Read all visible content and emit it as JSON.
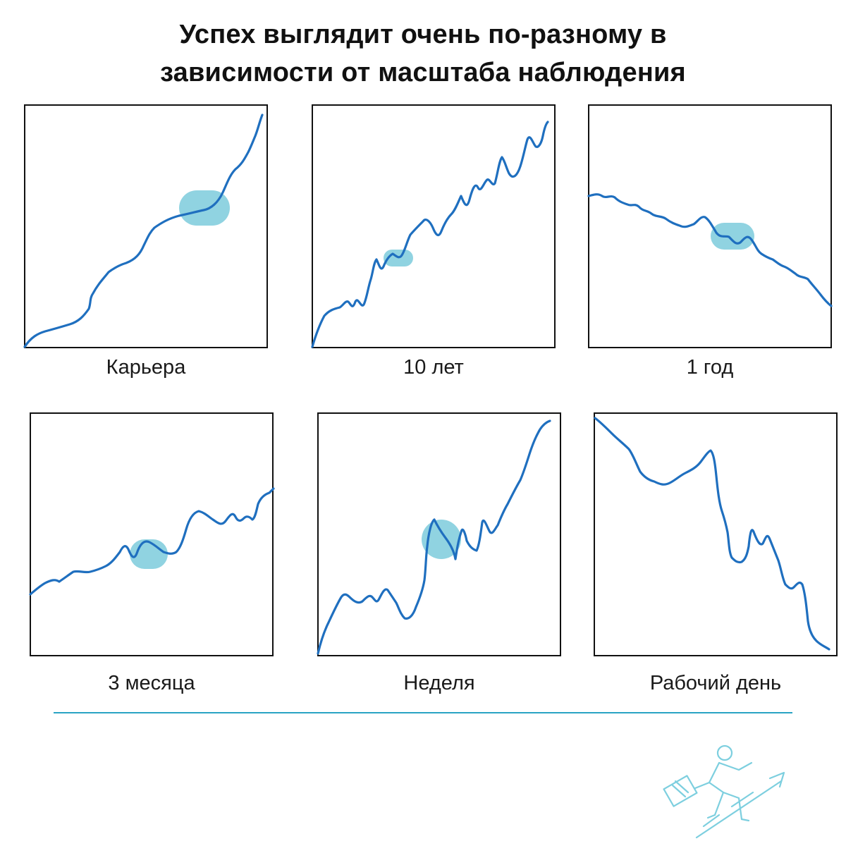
{
  "title": {
    "line1": "Успех выглядит очень по-разному в",
    "line2": "зависимости от масштаба наблюдения"
  },
  "colors": {
    "line": "#1f6fbf",
    "highlight": "#7ccbdc",
    "frame": "#111111",
    "divider": "#2aa3c4",
    "logo": "#7dcfdf"
  },
  "panels": [
    {
      "label": "Карьера",
      "trend": [
        0.0,
        0.04,
        0.05,
        0.06,
        0.07,
        0.08,
        0.1,
        0.12,
        0.15,
        0.18,
        0.2,
        0.23,
        0.25,
        0.27,
        0.29,
        0.3,
        0.33,
        0.36,
        0.39,
        0.42,
        0.45,
        0.48,
        0.51,
        0.53,
        0.55,
        0.56,
        0.57,
        0.58,
        0.585,
        0.59,
        0.6,
        0.62,
        0.65,
        0.7,
        0.74,
        0.78,
        0.81,
        0.84,
        0.87,
        0.9,
        0.93,
        0.96,
        1.0
      ],
      "highlight_at": 0.7
    },
    {
      "label": "10 лет",
      "trend": [
        0.0,
        0.12,
        0.15,
        0.17,
        0.18,
        0.2,
        0.19,
        0.22,
        0.21,
        0.2,
        0.25,
        0.22,
        0.26,
        0.3,
        0.35,
        0.38,
        0.34,
        0.4,
        0.39,
        0.43,
        0.4,
        0.45,
        0.48,
        0.52,
        0.55,
        0.5,
        0.48,
        0.52,
        0.56,
        0.58,
        0.6,
        0.57,
        0.62,
        0.65,
        0.7,
        0.68,
        0.66,
        0.72,
        0.75,
        0.78,
        0.73,
        0.82,
        0.88,
        0.9,
        0.85,
        0.95,
        1.0
      ],
      "highlight_at": 0.35
    },
    {
      "label": "1 год",
      "trend": [
        0.92,
        0.93,
        0.91,
        0.89,
        0.9,
        0.88,
        0.86,
        0.85,
        0.83,
        0.84,
        0.82,
        0.8,
        0.79,
        0.78,
        0.77,
        0.76,
        0.78,
        0.8,
        0.74,
        0.72,
        0.7,
        0.71,
        0.68,
        0.66,
        0.7,
        0.64,
        0.62,
        0.6,
        0.58,
        0.57,
        0.55,
        0.53,
        0.5,
        0.47,
        0.44,
        0.4,
        0.37,
        0.33,
        0.3,
        0.25,
        0.2,
        0.16,
        0.12
      ],
      "highlight_at": 0.58
    },
    {
      "label": "3 месяца",
      "trend": [
        0.0,
        0.03,
        0.07,
        0.1,
        0.11,
        0.1,
        0.13,
        0.14,
        0.15,
        0.14,
        0.16,
        0.17,
        0.19,
        0.22,
        0.28,
        0.32,
        0.26,
        0.29,
        0.34,
        0.33,
        0.31,
        0.27,
        0.25,
        0.27,
        0.3,
        0.35,
        0.42,
        0.48,
        0.44,
        0.4,
        0.38,
        0.41,
        0.44,
        0.45,
        0.42,
        0.46,
        0.44,
        0.5,
        0.46,
        0.52,
        0.56,
        0.58,
        0.6
      ],
      "highlight_at": 0.48
    },
    {
      "label": "Неделя",
      "trend": [
        0.0,
        0.08,
        0.12,
        0.15,
        0.2,
        0.24,
        0.28,
        0.26,
        0.24,
        0.22,
        0.25,
        0.28,
        0.24,
        0.21,
        0.17,
        0.16,
        0.18,
        0.24,
        0.3,
        0.36,
        0.45,
        0.55,
        0.6,
        0.52,
        0.46,
        0.42,
        0.55,
        0.58,
        0.5,
        0.48,
        0.56,
        0.6,
        0.58,
        0.62,
        0.7,
        0.74,
        0.78,
        0.82,
        0.86,
        0.9,
        0.94,
        0.98,
        1.0
      ],
      "highlight_at": 0.5
    },
    {
      "label": "Рабочий день",
      "trend": [
        1.0,
        0.97,
        0.94,
        0.9,
        0.85,
        0.8,
        0.76,
        0.73,
        0.71,
        0.74,
        0.76,
        0.8,
        0.84,
        0.87,
        0.82,
        0.72,
        0.62,
        0.55,
        0.5,
        0.52,
        0.54,
        0.48,
        0.52,
        0.46,
        0.44,
        0.4,
        0.35,
        0.31,
        0.33,
        0.3,
        0.27,
        0.25,
        0.2,
        0.18,
        0.15,
        0.1,
        0.07,
        0.04,
        0.02,
        0.01,
        0.0
      ],
      "highlight_at": null
    }
  ]
}
